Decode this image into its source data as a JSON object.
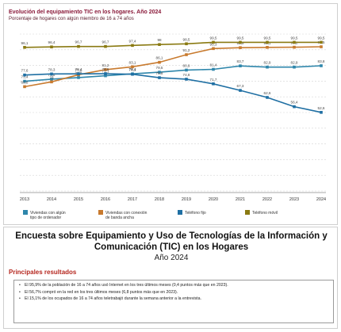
{
  "chart_data": {
    "type": "line",
    "title": "Evolución del equipamiento TIC en los hogares. Año 2024",
    "subtitle": "Porcentaje de hogares con algún miembro de 16 a 74 años",
    "categories": [
      "2013",
      "2014",
      "2015",
      "2016",
      "2017",
      "2018",
      "2019",
      "2020",
      "2021",
      "2022",
      "2023",
      "2024"
    ],
    "ylim": [
      0,
      105
    ],
    "grid": true,
    "legend_position": "bottom-left",
    "series": [
      {
        "name": "Viviendas con algún tipo de ordenador",
        "color": "#2e86ab",
        "values": [
          73.4,
          74.8,
          75.9,
          77.1,
          78.4,
          79.5,
          80.9,
          81.4,
          83.7,
          82.9,
          82.9,
          83.8
        ]
      },
      {
        "name": "Viviendas con conexión de banda ancha",
        "color": "#c87a2e",
        "values": [
          69.8,
          73.0,
          77.8,
          81.2,
          83.1,
          86.1,
          91.2,
          95.3,
          95.9,
          96.1,
          96.2,
          96.5
        ]
      },
      {
        "name": "Teléfono fijo",
        "color": "#1f6fa3",
        "values": [
          77.6,
          78.3,
          78.4,
          78.5,
          78.1,
          75.8,
          74.8,
          71.7,
          67.3,
          62.6,
          56.4,
          52.6
        ]
      },
      {
        "name": "Teléfono móvil",
        "color": "#8a7a12",
        "values": [
          96.1,
          96.4,
          96.7,
          96.7,
          97.4,
          98.0,
          98.5,
          99.5,
          99.5,
          99.5,
          99.5,
          99.5
        ]
      }
    ]
  },
  "report": {
    "title_line1": "Encuesta sobre Equipamiento y Uso de Tecnologías de la Información y",
    "title_line2": "Comunicación (TIC) en los Hogares",
    "year": "Año 2024",
    "results_heading": "Principales resultados",
    "bullets": [
      "El 95,9% de la población de 16 a 74 años usó Internet en los tres últimos meses (0,4 puntos más que en 2023).",
      "El 56,7% compró en la red en los tres últimos meses (6,8 puntos más que en 2023).",
      "El 15,1% de los ocupados de 16 a 74 años teletrabajó durante la semana anterior a la entrevista."
    ]
  }
}
